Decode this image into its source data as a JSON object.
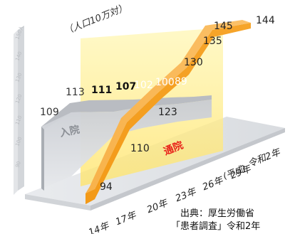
{
  "chart_data": {
    "type": "line",
    "unit_label": "（人口10万対）",
    "categories": [
      "14年",
      "17年",
      "20年",
      "23年",
      "26年",
      "29年",
      "令和2年"
    ],
    "era_note": "(平成)",
    "series": [
      {
        "name": "入院",
        "values": [
          109,
          113,
          111,
          107,
          102,
          100,
          89
        ]
      },
      {
        "name": "通院",
        "values": [
          94,
          110,
          123,
          130,
          135,
          145,
          144
        ]
      }
    ],
    "y_ticks": [
      "150人",
      "140",
      "130",
      "120",
      "110",
      "100",
      "90"
    ],
    "source_line1": "出典：厚生労働省",
    "source_line2": "「患者調査」令和2年"
  }
}
